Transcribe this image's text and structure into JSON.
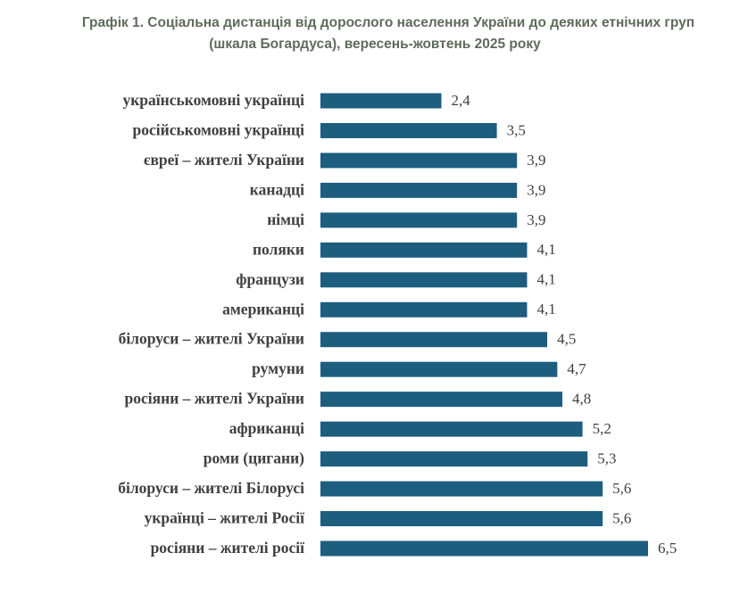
{
  "chart_data": {
    "type": "barh",
    "title": [
      "Графік 1. Соціальна дистанція від дорослого населення України до деяких етнічних груп",
      "(шкала Богардуса), вересень-жовтень 2025 року"
    ],
    "categories": [
      "українськомовні українці",
      "російськомовні українці",
      "євреї – жителі України",
      "канадці",
      "німці",
      "поляки",
      "французи",
      "американці",
      "білоруси – жителі України",
      "румуни",
      "росіяни – жителі України",
      "африканці",
      "роми (цигани)",
      "білоруси – жителі Білорусі",
      "українці – жителі Росії",
      "росіяни – жителі росії"
    ],
    "values": [
      2.4,
      3.5,
      3.9,
      3.9,
      3.9,
      4.1,
      4.1,
      4.1,
      4.5,
      4.7,
      4.8,
      5.2,
      5.3,
      5.6,
      5.6,
      6.5
    ],
    "value_labels": [
      "2,4",
      "3,5",
      "3,9",
      "3,9",
      "3,9",
      "4,1",
      "4,1",
      "4,1",
      "4,5",
      "4,7",
      "4,8",
      "5,2",
      "5,3",
      "5,6",
      "5,6",
      "6,5"
    ],
    "color": "#1d5d7e"
  }
}
